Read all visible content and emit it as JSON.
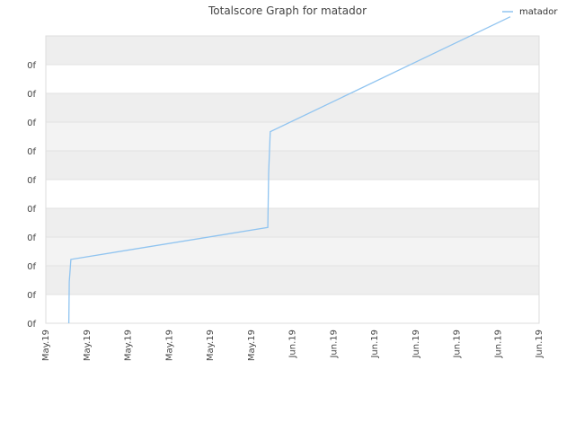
{
  "chart_data": {
    "type": "line",
    "title": "Totalscore Graph for matador",
    "xlabel": "",
    "ylabel": "",
    "legend_position": "top-right",
    "grid": true,
    "y_tick_labels": [
      "0f",
      "0f",
      "0f",
      "0f",
      "0f",
      "0f",
      "0f",
      "0f",
      "0f",
      "0f"
    ],
    "x_tick_labels": [
      "May.19",
      "May.19",
      "May.19",
      "May.19",
      "May.19",
      "May.19",
      "Jun.19",
      "Jun.19",
      "Jun.19",
      "Jun.19",
      "Jun.19",
      "Jun.19",
      "Jun.19"
    ],
    "xlim": [
      0,
      12
    ],
    "ylim": [
      0,
      9
    ],
    "series": [
      {
        "name": "matador",
        "color": "#90c4f0",
        "x": [
          0.56,
          0.57,
          0.61,
          5.4,
          5.42,
          5.46,
          11.3
        ],
        "y": [
          0.0,
          1.3,
          2.0,
          3.0,
          4.7,
          6.0,
          9.6
        ]
      }
    ]
  }
}
